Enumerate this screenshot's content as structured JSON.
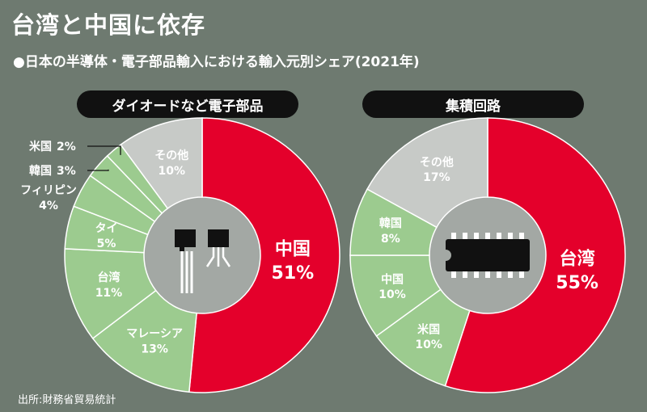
{
  "title": "台湾と中国に依存",
  "subtitle": "●日本の半導体・電子部品輸入における輸入元別シェア(2021年)",
  "source": "出所:財務省貿易統計",
  "colors": {
    "china": "#e4002b",
    "green": "#9ccb8f",
    "gray": "#c7cac7",
    "center_bg": "#a3a8a4",
    "pill": "#111111",
    "page_bg": "#6e7a70"
  },
  "chart_data": [
    {
      "type": "pie",
      "title": "ダイオードなど電子部品",
      "center_icon": "diode-transistor-icon",
      "slices": [
        {
          "name": "中国",
          "value": 51,
          "label": "51%",
          "color": "#e4002b"
        },
        {
          "name": "マレーシア",
          "value": 13,
          "label": "13%",
          "color": "#9ccb8f"
        },
        {
          "name": "台湾",
          "value": 11,
          "label": "11%",
          "color": "#9ccb8f"
        },
        {
          "name": "タイ",
          "value": 5,
          "label": "5%",
          "color": "#9ccb8f"
        },
        {
          "name": "フィリピン",
          "value": 4,
          "label": "4%",
          "color": "#9ccb8f"
        },
        {
          "name": "韓国",
          "value": 3,
          "label": "3%",
          "color": "#9ccb8f"
        },
        {
          "name": "米国",
          "value": 2,
          "label": "2%",
          "color": "#9ccb8f"
        },
        {
          "name": "その他",
          "value": 10,
          "label": "10%",
          "color": "#c7cac7"
        }
      ]
    },
    {
      "type": "pie",
      "title": "集積回路",
      "center_icon": "integrated-circuit-chip-icon",
      "slices": [
        {
          "name": "台湾",
          "value": 55,
          "label": "55%",
          "color": "#e4002b"
        },
        {
          "name": "米国",
          "value": 10,
          "label": "10%",
          "color": "#9ccb8f"
        },
        {
          "name": "中国",
          "value": 10,
          "label": "10%",
          "color": "#9ccb8f"
        },
        {
          "name": "韓国",
          "value": 8,
          "label": "8%",
          "color": "#9ccb8f"
        },
        {
          "name": "その他",
          "value": 17,
          "label": "17%",
          "color": "#c7cac7"
        }
      ]
    }
  ]
}
